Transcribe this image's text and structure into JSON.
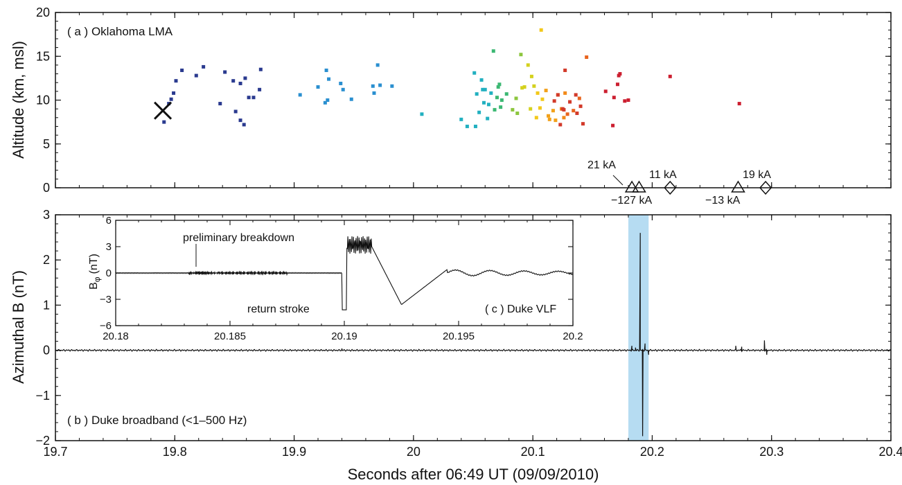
{
  "figure": {
    "x_axis_label": "Seconds after 06:49 UT (09/09/2010)",
    "colors": {
      "highlight": "#b6dcf2",
      "trace": "#111111",
      "marker": "#111111"
    }
  },
  "chart_data": [
    {
      "type": "scatter",
      "panel_label": "( a ) Oklahoma LMA",
      "xlabel": "Seconds after 06:49 UT (09/09/2010)",
      "ylabel": "Altitude (km, msl)",
      "xlim": [
        19.7,
        20.4
      ],
      "ylim": [
        0,
        20
      ],
      "x_ticks": [
        "19.7",
        "19.8",
        "19.9",
        "20",
        "20.1",
        "20.2",
        "20.3",
        "20.4"
      ],
      "y_ticks": [
        "0",
        "5",
        "10",
        "15",
        "20"
      ],
      "color_scale": "time (blue → red)",
      "initiation_marker": {
        "symbol": "X",
        "x": 19.79,
        "y": 8.8
      },
      "points": [
        [
          19.791,
          7.5,
          "#2a3a8f"
        ],
        [
          19.795,
          9.6,
          "#2a3a8f"
        ],
        [
          19.797,
          10.1,
          "#2a3a8f"
        ],
        [
          19.799,
          10.8,
          "#2a3a8f"
        ],
        [
          19.801,
          12.2,
          "#2a3a8f"
        ],
        [
          19.806,
          13.4,
          "#2a3a8f"
        ],
        [
          19.818,
          12.8,
          "#2a3a8f"
        ],
        [
          19.824,
          13.8,
          "#2a3a8f"
        ],
        [
          19.838,
          9.6,
          "#2a3a8f"
        ],
        [
          19.842,
          13.2,
          "#2a3a8f"
        ],
        [
          19.849,
          12.2,
          "#2a3a8f"
        ],
        [
          19.851,
          8.7,
          "#2a3a8f"
        ],
        [
          19.855,
          11.9,
          "#2a3a8f"
        ],
        [
          19.859,
          12.5,
          "#2a3a8f"
        ],
        [
          19.862,
          10.3,
          "#2a3a8f"
        ],
        [
          19.866,
          10.3,
          "#2a3a8f"
        ],
        [
          19.858,
          7.2,
          "#2a3a8f"
        ],
        [
          19.855,
          7.7,
          "#2a3a8f"
        ],
        [
          19.872,
          13.5,
          "#2a3a8f"
        ],
        [
          19.871,
          11.2,
          "#2a3a8f"
        ],
        [
          19.905,
          10.6,
          "#2a8fd0"
        ],
        [
          19.92,
          11.5,
          "#2a8fd0"
        ],
        [
          19.927,
          13.4,
          "#2a8fd0"
        ],
        [
          19.929,
          12.4,
          "#2a8fd0"
        ],
        [
          19.928,
          10.0,
          "#2a8fd0"
        ],
        [
          19.926,
          9.7,
          "#2a8fd0"
        ],
        [
          19.939,
          11.9,
          "#2a8fd0"
        ],
        [
          19.941,
          11.2,
          "#2a8fd0"
        ],
        [
          19.948,
          10.1,
          "#2a8fd0"
        ],
        [
          19.966,
          11.6,
          "#2a8fd0"
        ],
        [
          19.967,
          10.8,
          "#2a8fd0"
        ],
        [
          19.97,
          14.0,
          "#2a8fd0"
        ],
        [
          19.972,
          11.7,
          "#2a8fd0"
        ],
        [
          19.982,
          11.6,
          "#2a8fd0"
        ],
        [
          20.007,
          8.4,
          "#22b0c0"
        ],
        [
          20.04,
          7.8,
          "#22b0c0"
        ],
        [
          20.045,
          7.0,
          "#22b0c0"
        ],
        [
          20.052,
          7.0,
          "#22b0c0"
        ],
        [
          20.051,
          13.1,
          "#22b0c0"
        ],
        [
          20.053,
          10.7,
          "#22b0c0"
        ],
        [
          20.057,
          12.3,
          "#22b0c0"
        ],
        [
          20.058,
          11.2,
          "#22b0c0"
        ],
        [
          20.059,
          9.7,
          "#22b0c0"
        ],
        [
          20.06,
          11.2,
          "#22b0c0"
        ],
        [
          20.055,
          8.6,
          "#22b0c0"
        ],
        [
          20.063,
          9.5,
          "#22b0c0"
        ],
        [
          20.062,
          7.9,
          "#22b0c0"
        ],
        [
          20.065,
          10.8,
          "#22b0c0"
        ],
        [
          20.067,
          15.6,
          "#3cb873"
        ],
        [
          20.068,
          8.9,
          "#3cb873"
        ],
        [
          20.07,
          10.3,
          "#3cb873"
        ],
        [
          20.071,
          11.5,
          "#3cb873"
        ],
        [
          20.072,
          11.8,
          "#3cb873"
        ],
        [
          20.073,
          9.2,
          "#3cb873"
        ],
        [
          20.074,
          10.0,
          "#3cb873"
        ],
        [
          20.078,
          10.7,
          "#3cb873"
        ],
        [
          20.083,
          8.9,
          "#8cc63e"
        ],
        [
          20.086,
          10.2,
          "#8cc63e"
        ],
        [
          20.087,
          8.5,
          "#8cc63e"
        ],
        [
          20.09,
          15.2,
          "#8cc63e"
        ],
        [
          20.091,
          11.4,
          "#d4d11e"
        ],
        [
          20.093,
          11.5,
          "#d4d11e"
        ],
        [
          20.096,
          14.0,
          "#d4d11e"
        ],
        [
          20.098,
          9.0,
          "#d4d11e"
        ],
        [
          20.099,
          12.7,
          "#d4d11e"
        ],
        [
          20.101,
          11.6,
          "#d4d11e"
        ],
        [
          20.103,
          8.0,
          "#f2c81a"
        ],
        [
          20.104,
          10.8,
          "#f2c81a"
        ],
        [
          20.106,
          9.1,
          "#f2c81a"
        ],
        [
          20.107,
          18.0,
          "#f2c81a"
        ],
        [
          20.108,
          10.1,
          "#f2c81a"
        ],
        [
          20.111,
          11.1,
          "#f2a11a"
        ],
        [
          20.113,
          8.2,
          "#f2a11a"
        ],
        [
          20.114,
          7.8,
          "#f2a11a"
        ],
        [
          20.117,
          8.8,
          "#f2a11a"
        ],
        [
          20.119,
          7.7,
          "#f2a11a"
        ],
        [
          20.121,
          10.6,
          "#f28a1a"
        ],
        [
          20.124,
          9.0,
          "#f28a1a"
        ],
        [
          20.126,
          8.0,
          "#f28a1a"
        ],
        [
          20.127,
          10.8,
          "#f28a1a"
        ],
        [
          20.129,
          8.4,
          "#e8641e"
        ],
        [
          20.134,
          8.8,
          "#e8641e"
        ],
        [
          20.139,
          10.2,
          "#e8641e"
        ],
        [
          20.145,
          14.9,
          "#e8641e"
        ],
        [
          20.118,
          9.9,
          "#d23a2a"
        ],
        [
          20.121,
          10.6,
          "#d23a2a"
        ],
        [
          20.126,
          8.9,
          "#d23a2a"
        ],
        [
          20.123,
          7.2,
          "#d23a2a"
        ],
        [
          20.125,
          9.0,
          "#d23a2a"
        ],
        [
          20.127,
          13.4,
          "#d23a2a"
        ],
        [
          20.131,
          9.8,
          "#d23a2a"
        ],
        [
          20.136,
          10.6,
          "#d23a2a"
        ],
        [
          20.137,
          8.5,
          "#d23a2a"
        ],
        [
          20.14,
          9.3,
          "#d23a2a"
        ],
        [
          20.142,
          7.3,
          "#d23a2a"
        ],
        [
          20.161,
          11.0,
          "#cc1f30"
        ],
        [
          20.167,
          7.1,
          "#cc1f30"
        ],
        [
          20.168,
          10.3,
          "#cc1f30"
        ],
        [
          20.171,
          11.8,
          "#cc1f30"
        ],
        [
          20.172,
          12.8,
          "#cc1f30"
        ],
        [
          20.173,
          13.0,
          "#cc1f30"
        ],
        [
          20.177,
          9.9,
          "#cc1f30"
        ],
        [
          20.18,
          10.0,
          "#cc1f30"
        ],
        [
          20.215,
          12.7,
          "#cc1f30"
        ],
        [
          20.273,
          9.6,
          "#cc1f30"
        ]
      ],
      "nldn_events": [
        {
          "type": "triangle",
          "x": 20.183,
          "y": 0
        },
        {
          "type": "triangle",
          "x": 20.189,
          "y": 0
        },
        {
          "type": "diamond",
          "x": 20.215,
          "y": 0
        },
        {
          "type": "triangle",
          "x": 20.272,
          "y": 0
        },
        {
          "type": "diamond",
          "x": 20.295,
          "y": 0
        }
      ],
      "annotations": [
        "21 kA",
        "−127 kA",
        "11 kA",
        "−13 kA",
        "19 kA"
      ]
    },
    {
      "type": "line",
      "panel_label": "( b ) Duke broadband (<1–500 Hz)",
      "xlabel": "Seconds after 06:49 UT (09/09/2010)",
      "ylabel": "Azimuthal B (nT)",
      "xlim": [
        19.7,
        20.4
      ],
      "ylim": [
        -2,
        3
      ],
      "x_ticks": [
        "19.7",
        "19.8",
        "19.9",
        "20",
        "20.1",
        "20.2",
        "20.3",
        "20.4"
      ],
      "y_ticks": [
        "−2",
        "−1",
        "0",
        "1",
        "2",
        "3"
      ],
      "highlight_span": [
        20.18,
        20.197
      ],
      "features": [
        {
          "x": 19.94,
          "y": 0.04
        },
        {
          "x": 20.183,
          "y": 0.1
        },
        {
          "x": 20.186,
          "y": 0.06
        },
        {
          "x": 20.19,
          "y": 2.6
        },
        {
          "x": 20.192,
          "y": -1.9
        },
        {
          "x": 20.194,
          "y": 0.15
        },
        {
          "x": 20.197,
          "y": -0.1
        },
        {
          "x": 20.27,
          "y": 0.1
        },
        {
          "x": 20.275,
          "y": 0.08
        },
        {
          "x": 20.294,
          "y": 0.22
        },
        {
          "x": 20.296,
          "y": -0.1
        }
      ]
    },
    {
      "type": "line",
      "panel_label": "( c ) Duke VLF",
      "ylabel_main": "B",
      "ylabel_sub": "φ",
      "ylabel_unit": "(nT)",
      "xlim": [
        20.18,
        20.2
      ],
      "ylim": [
        -6,
        6
      ],
      "x_ticks": [
        "20.18",
        "20.185",
        "20.19",
        "20.195",
        "20.2"
      ],
      "y_ticks": [
        "6",
        "3",
        "0",
        "−3",
        "−6"
      ],
      "annotations": [
        "preliminary breakdown",
        "return stroke"
      ],
      "features": [
        {
          "x": 20.1834,
          "y": 0.9
        },
        {
          "x": 20.1836,
          "y": -0.6
        },
        {
          "x": 20.1899,
          "y": -4.2
        },
        {
          "x": 20.1901,
          "y": 4.4
        },
        {
          "x": 20.1908,
          "y": 4.3
        },
        {
          "x": 20.1912,
          "y": 1.5
        },
        {
          "x": 20.1925,
          "y": -3.6
        },
        {
          "x": 20.1935,
          "y": -0.9
        },
        {
          "x": 20.1945,
          "y": 0.4
        }
      ]
    }
  ]
}
